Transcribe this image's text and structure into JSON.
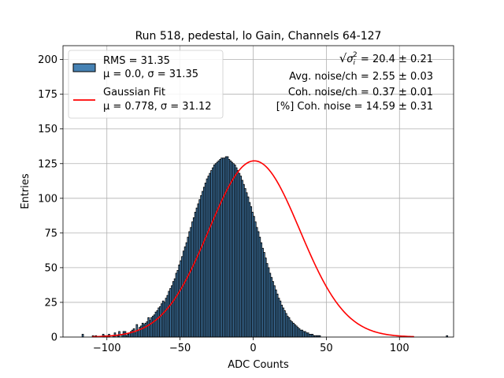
{
  "chart_data": {
    "type": "bar",
    "title": "Run 518, pedestal, lo Gain, Channels 64-127",
    "xlabel": "ADC Counts",
    "ylabel": "Entries",
    "xlim": [
      -130,
      137
    ],
    "ylim": [
      0,
      210
    ],
    "xticks": [
      -100,
      -50,
      0,
      50,
      100
    ],
    "yticks": [
      0,
      25,
      50,
      75,
      100,
      125,
      150,
      175,
      200
    ],
    "grid": true,
    "legend_position": "top-left",
    "legend": [
      {
        "name": "RMS = 31.35",
        "name_line2": "μ = 0.0, σ = 31.35",
        "kind": "patch"
      },
      {
        "name": "Gaussian Fit",
        "name_line2": "μ = 0.778, σ = 31.12",
        "kind": "line"
      }
    ],
    "annotations": {
      "sigma_prefix": "√",
      "sigma_symbol": "σ",
      "sigma_sub": "i",
      "sigma_sup": "2",
      "sigma_rest": " = 20.4 ± 0.21",
      "line2": "Avg. noise/ch = 2.55 ± 0.03",
      "line3": "Coh. noise/ch = 0.37 ± 0.01",
      "line4": "[%] Coh. noise = 14.59 ± 0.31"
    },
    "histogram": {
      "bin_width": 1,
      "x_start": -117,
      "values": [
        2,
        0,
        0,
        0,
        0,
        0,
        0,
        1,
        0,
        1,
        0,
        0,
        0,
        0,
        2,
        1,
        0,
        1,
        2,
        0,
        0,
        1,
        3,
        0,
        1,
        4,
        0,
        2,
        4,
        4,
        1,
        2,
        3,
        4,
        5,
        6,
        3,
        9,
        5,
        7,
        8,
        10,
        9,
        10,
        11,
        14,
        12,
        14,
        15,
        16,
        18,
        19,
        21,
        22,
        24,
        26,
        25,
        28,
        30,
        33,
        35,
        37,
        40,
        42,
        46,
        48,
        52,
        55,
        58,
        62,
        65,
        68,
        72,
        76,
        79,
        83,
        86,
        90,
        93,
        96,
        99,
        102,
        105,
        108,
        111,
        114,
        116,
        118,
        120,
        122,
        124,
        125,
        126,
        127,
        128,
        129,
        129,
        129,
        130,
        130,
        128,
        127,
        126,
        125,
        124,
        122,
        120,
        118,
        116,
        113,
        110,
        107,
        104,
        101,
        97,
        94,
        90,
        87,
        83,
        79,
        76,
        72,
        68,
        64,
        61,
        57,
        53,
        50,
        46,
        43,
        40,
        37,
        34,
        31,
        28,
        26,
        23,
        21,
        19,
        17,
        15,
        14,
        12,
        11,
        10,
        9,
        8,
        7,
        6,
        5,
        5,
        4,
        4,
        3,
        3,
        2,
        2,
        2,
        1,
        1,
        1,
        1,
        1,
        0,
        0,
        0,
        0,
        0,
        0,
        0,
        0,
        0,
        0,
        0,
        0,
        0,
        0,
        0,
        0,
        0,
        0,
        0,
        0,
        0,
        0,
        0,
        0,
        0,
        0,
        0,
        0,
        0,
        0,
        0,
        0,
        0,
        0,
        0,
        0,
        0,
        0,
        0,
        0,
        0,
        0,
        0,
        0,
        0,
        0,
        0,
        0,
        0,
        0,
        0,
        0,
        0,
        0,
        0,
        0,
        0,
        0,
        0,
        0,
        0,
        0,
        0,
        0,
        0,
        0,
        0,
        0,
        0,
        0,
        0,
        0,
        0,
        0,
        0,
        0,
        0,
        0,
        0,
        0,
        0,
        0,
        0,
        0,
        0,
        0,
        1
      ]
    },
    "series": [
      {
        "kind": "histogram",
        "color": "#4682b4",
        "edge_color": "#000000"
      },
      {
        "kind": "gaussian_fit",
        "mu": 0.778,
        "sigma": 31.12,
        "amplitude": 127,
        "color": "#ff0000",
        "x_range": [
          -110,
          110
        ]
      }
    ]
  }
}
